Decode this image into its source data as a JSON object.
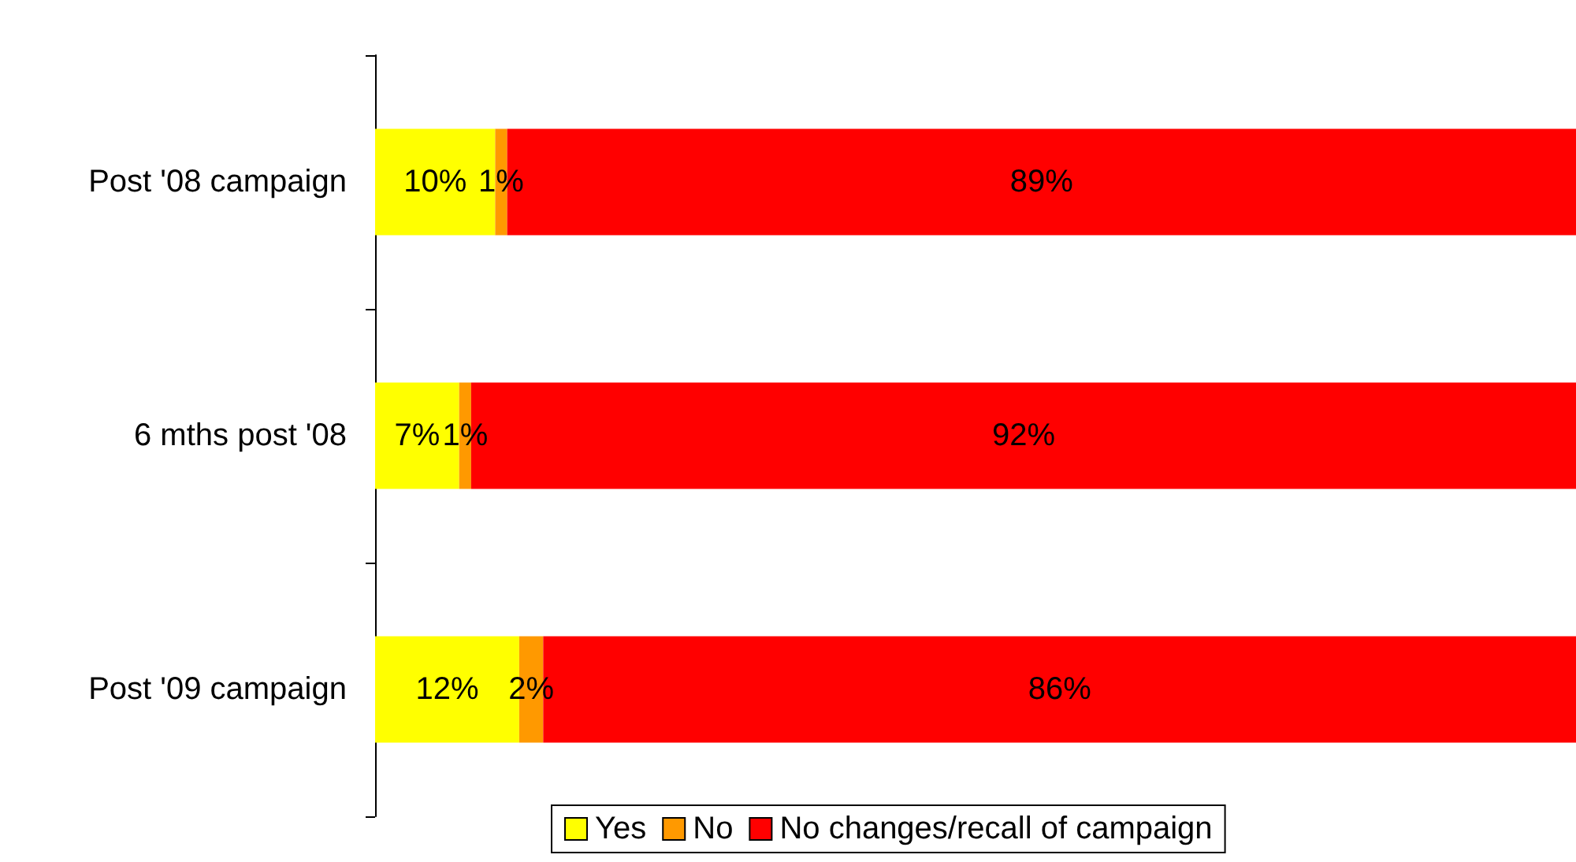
{
  "chart_data": {
    "type": "bar",
    "orientation": "horizontal",
    "stacked": true,
    "categories": [
      "Post '08 campaign",
      "6 mths post '08",
      "Post '09 campaign"
    ],
    "series": [
      {
        "name": "Yes",
        "color": "#ffff00",
        "values": [
          10,
          7,
          12
        ],
        "value_labels": [
          "10%",
          "7%",
          "12%"
        ]
      },
      {
        "name": "No",
        "color": "#ff9900",
        "values": [
          1,
          1,
          2
        ],
        "value_labels": [
          "1%",
          "1%",
          "2%"
        ]
      },
      {
        "name": "No changes/recall of campaign",
        "color": "#ff0000",
        "values": [
          89,
          92,
          86
        ],
        "value_labels": [
          "89%",
          "92%",
          "86%"
        ]
      }
    ],
    "tick_labels": "y",
    "legend": "bottom"
  }
}
